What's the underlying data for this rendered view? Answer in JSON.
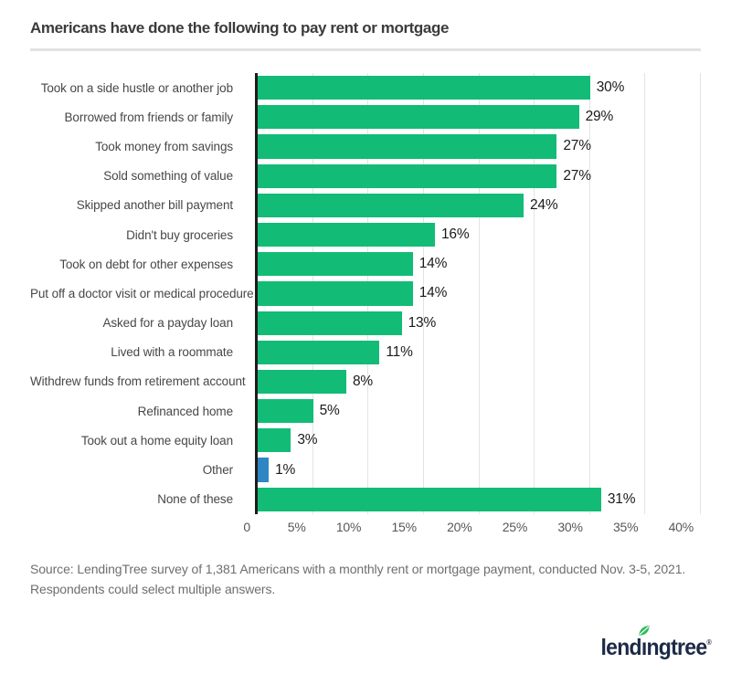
{
  "header": {
    "title": "Americans have done the following to pay rent or mortgage"
  },
  "chart_data": {
    "type": "bar",
    "orientation": "horizontal",
    "title": "Americans have done the following to pay rent or mortgage",
    "categories": [
      "Took on a side hustle or another job",
      "Borrowed from friends or family",
      "Took money from savings",
      "Sold something of value",
      "Skipped another bill payment",
      "Didn't buy groceries",
      "Took on debt for other expenses",
      "Put off a doctor visit or medical procedure",
      "Asked for a payday loan",
      "Lived with a roommate",
      "Withdrew funds from retirement account",
      "Refinanced home",
      "Took out a home equity loan",
      "Other",
      "None of these"
    ],
    "values": [
      30,
      29,
      27,
      27,
      24,
      16,
      14,
      14,
      13,
      11,
      8,
      5,
      3,
      1,
      31
    ],
    "value_labels": [
      "30%",
      "29%",
      "27%",
      "27%",
      "24%",
      "16%",
      "14%",
      "14%",
      "13%",
      "11%",
      "8%",
      "5%",
      "3%",
      "1%",
      "31%"
    ],
    "bar_colors": [
      "#12bc76",
      "#12bc76",
      "#12bc76",
      "#12bc76",
      "#12bc76",
      "#12bc76",
      "#12bc76",
      "#12bc76",
      "#12bc76",
      "#12bc76",
      "#12bc76",
      "#12bc76",
      "#12bc76",
      "#2e86c4",
      "#12bc76"
    ],
    "xlabel": "",
    "ylabel": "",
    "xlim": [
      0,
      40
    ],
    "x_ticks": [
      {
        "label": "0",
        "value": 0
      },
      {
        "label": "5%",
        "value": 5
      },
      {
        "label": "10%",
        "value": 10
      },
      {
        "label": "15%",
        "value": 15
      },
      {
        "label": "20%",
        "value": 20
      },
      {
        "label": "25%",
        "value": 25
      },
      {
        "label": "30%",
        "value": 30
      },
      {
        "label": "35%",
        "value": 35
      },
      {
        "label": "40%",
        "value": 40
      }
    ],
    "grid": true,
    "gridline_color": "#e3e3e3",
    "axis_line_color": "#1c1c1c",
    "accent_green": "#12bc76",
    "accent_blue": "#2e86c4",
    "legend": null
  },
  "footer": {
    "source_lines": [
      "Source: LendingTree survey of 1,381 Americans with a monthly rent or mortgage payment, conducted Nov. 3-5, 2021.",
      "Respondents could select multiple answers."
    ],
    "logo": {
      "text": "lendingtree",
      "part_pre": "lend",
      "part_i": "ı",
      "part_post": "ngtree",
      "reg_mark": "®",
      "navy": "#1c2a47",
      "leaf_green": "#2db85c"
    }
  }
}
